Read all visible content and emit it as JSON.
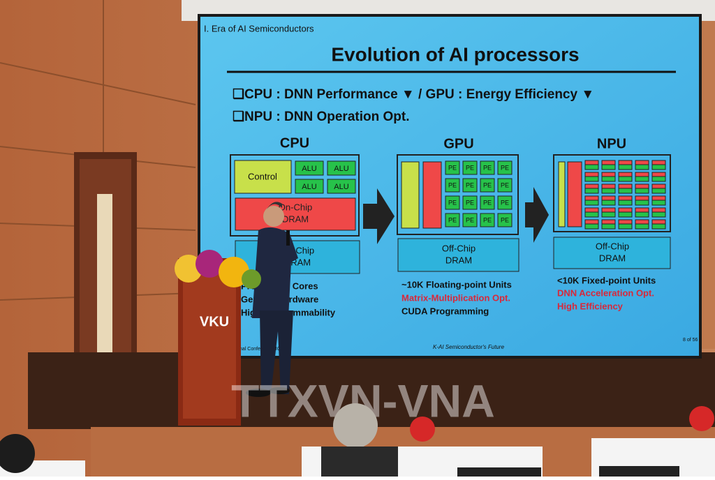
{
  "slide": {
    "section": "I. Era of AI Semiconductors",
    "title": "Evolution of AI processors",
    "bullets": [
      "❑CPU : DNN Performance ▼ / GPU : Energy Efficiency ▼",
      "❑NPU : DNN Operation Opt."
    ],
    "cpu": {
      "name": "CPU",
      "control": "Control",
      "alu": "ALU",
      "onchip": [
        "On-Chip",
        "DRAM"
      ],
      "offchip": [
        "Off-Chip",
        "DRAM"
      ],
      "notes": [
        "Processing Cores",
        "General Hardware",
        "High Programmability"
      ]
    },
    "gpu": {
      "name": "GPU",
      "pe": "PE",
      "offchip": [
        "Off-Chip",
        "DRAM"
      ],
      "notes": [
        "~10K Floating-point Units",
        "Matrix-Multiplication Opt.",
        "CUDA Programming"
      ]
    },
    "npu": {
      "name": "NPU",
      "offchip": [
        "Off-Chip",
        "DRAM"
      ],
      "notes": [
        "<10K Fixed-point Units",
        "DNN Acceleration Opt.",
        "High Efficiency"
      ]
    },
    "footer": {
      "conference": "nal Conference (ICOS)",
      "tagline": "K-AI Semiconductor's Future",
      "page": "8 of 56"
    }
  },
  "podium_logo": "VKU",
  "watermark": "TTXVN-VNA"
}
